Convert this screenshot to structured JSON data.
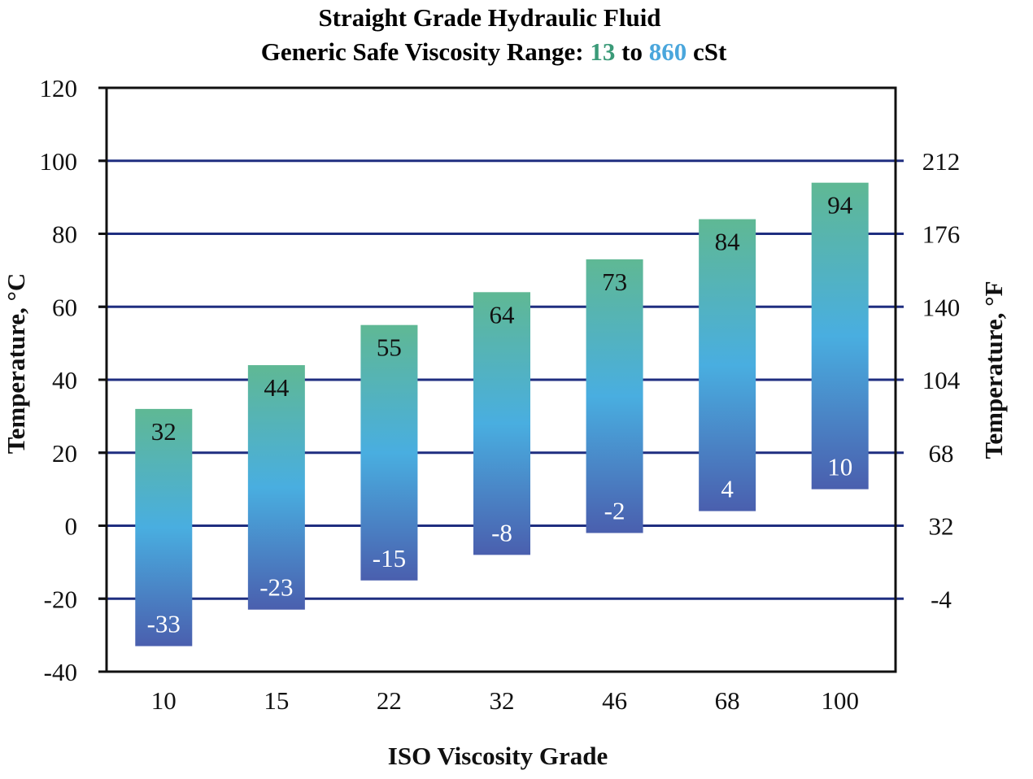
{
  "chart_data": {
    "type": "bar",
    "subtype": "floating-range",
    "title": "Straight Grade Hydraulic Fluid",
    "subtitle": {
      "prefix": "Generic Safe Viscosity Range: ",
      "low_value": "13",
      "connector": " to ",
      "high_value": "860",
      "suffix": " cSt"
    },
    "xlabel": "ISO Viscosity Grade",
    "ylabel": "Temperature, °C",
    "ylabel_right": "Temperature, °F",
    "categories": [
      "10",
      "15",
      "22",
      "32",
      "46",
      "68",
      "100"
    ],
    "series": [
      {
        "values_low": [
          -33,
          -23,
          -15,
          -8,
          -2,
          4,
          10
        ],
        "values_high": [
          32,
          44,
          55,
          64,
          73,
          84,
          94
        ]
      }
    ],
    "ylim": [
      -40,
      120
    ],
    "yticks": [
      -40,
      -20,
      0,
      20,
      40,
      60,
      80,
      100,
      120
    ],
    "yticks_right": [
      {
        "c": 100,
        "label": "212"
      },
      {
        "c": 80,
        "label": "176"
      },
      {
        "c": 60,
        "label": "140"
      },
      {
        "c": 40,
        "label": "104"
      },
      {
        "c": 20,
        "label": "68"
      },
      {
        "c": 0,
        "label": "32"
      },
      {
        "c": -20,
        "label": "-4"
      }
    ],
    "grid": true,
    "legend": "none"
  },
  "colors": {
    "low_value_text": "#3a9a78",
    "high_value_text": "#4aa6dc",
    "gridline": "#1f2e80",
    "bar_top": "#5fb894",
    "bar_mid": "#49aee0",
    "bar_bottom": "#4a5fae",
    "frame": "#111111"
  }
}
